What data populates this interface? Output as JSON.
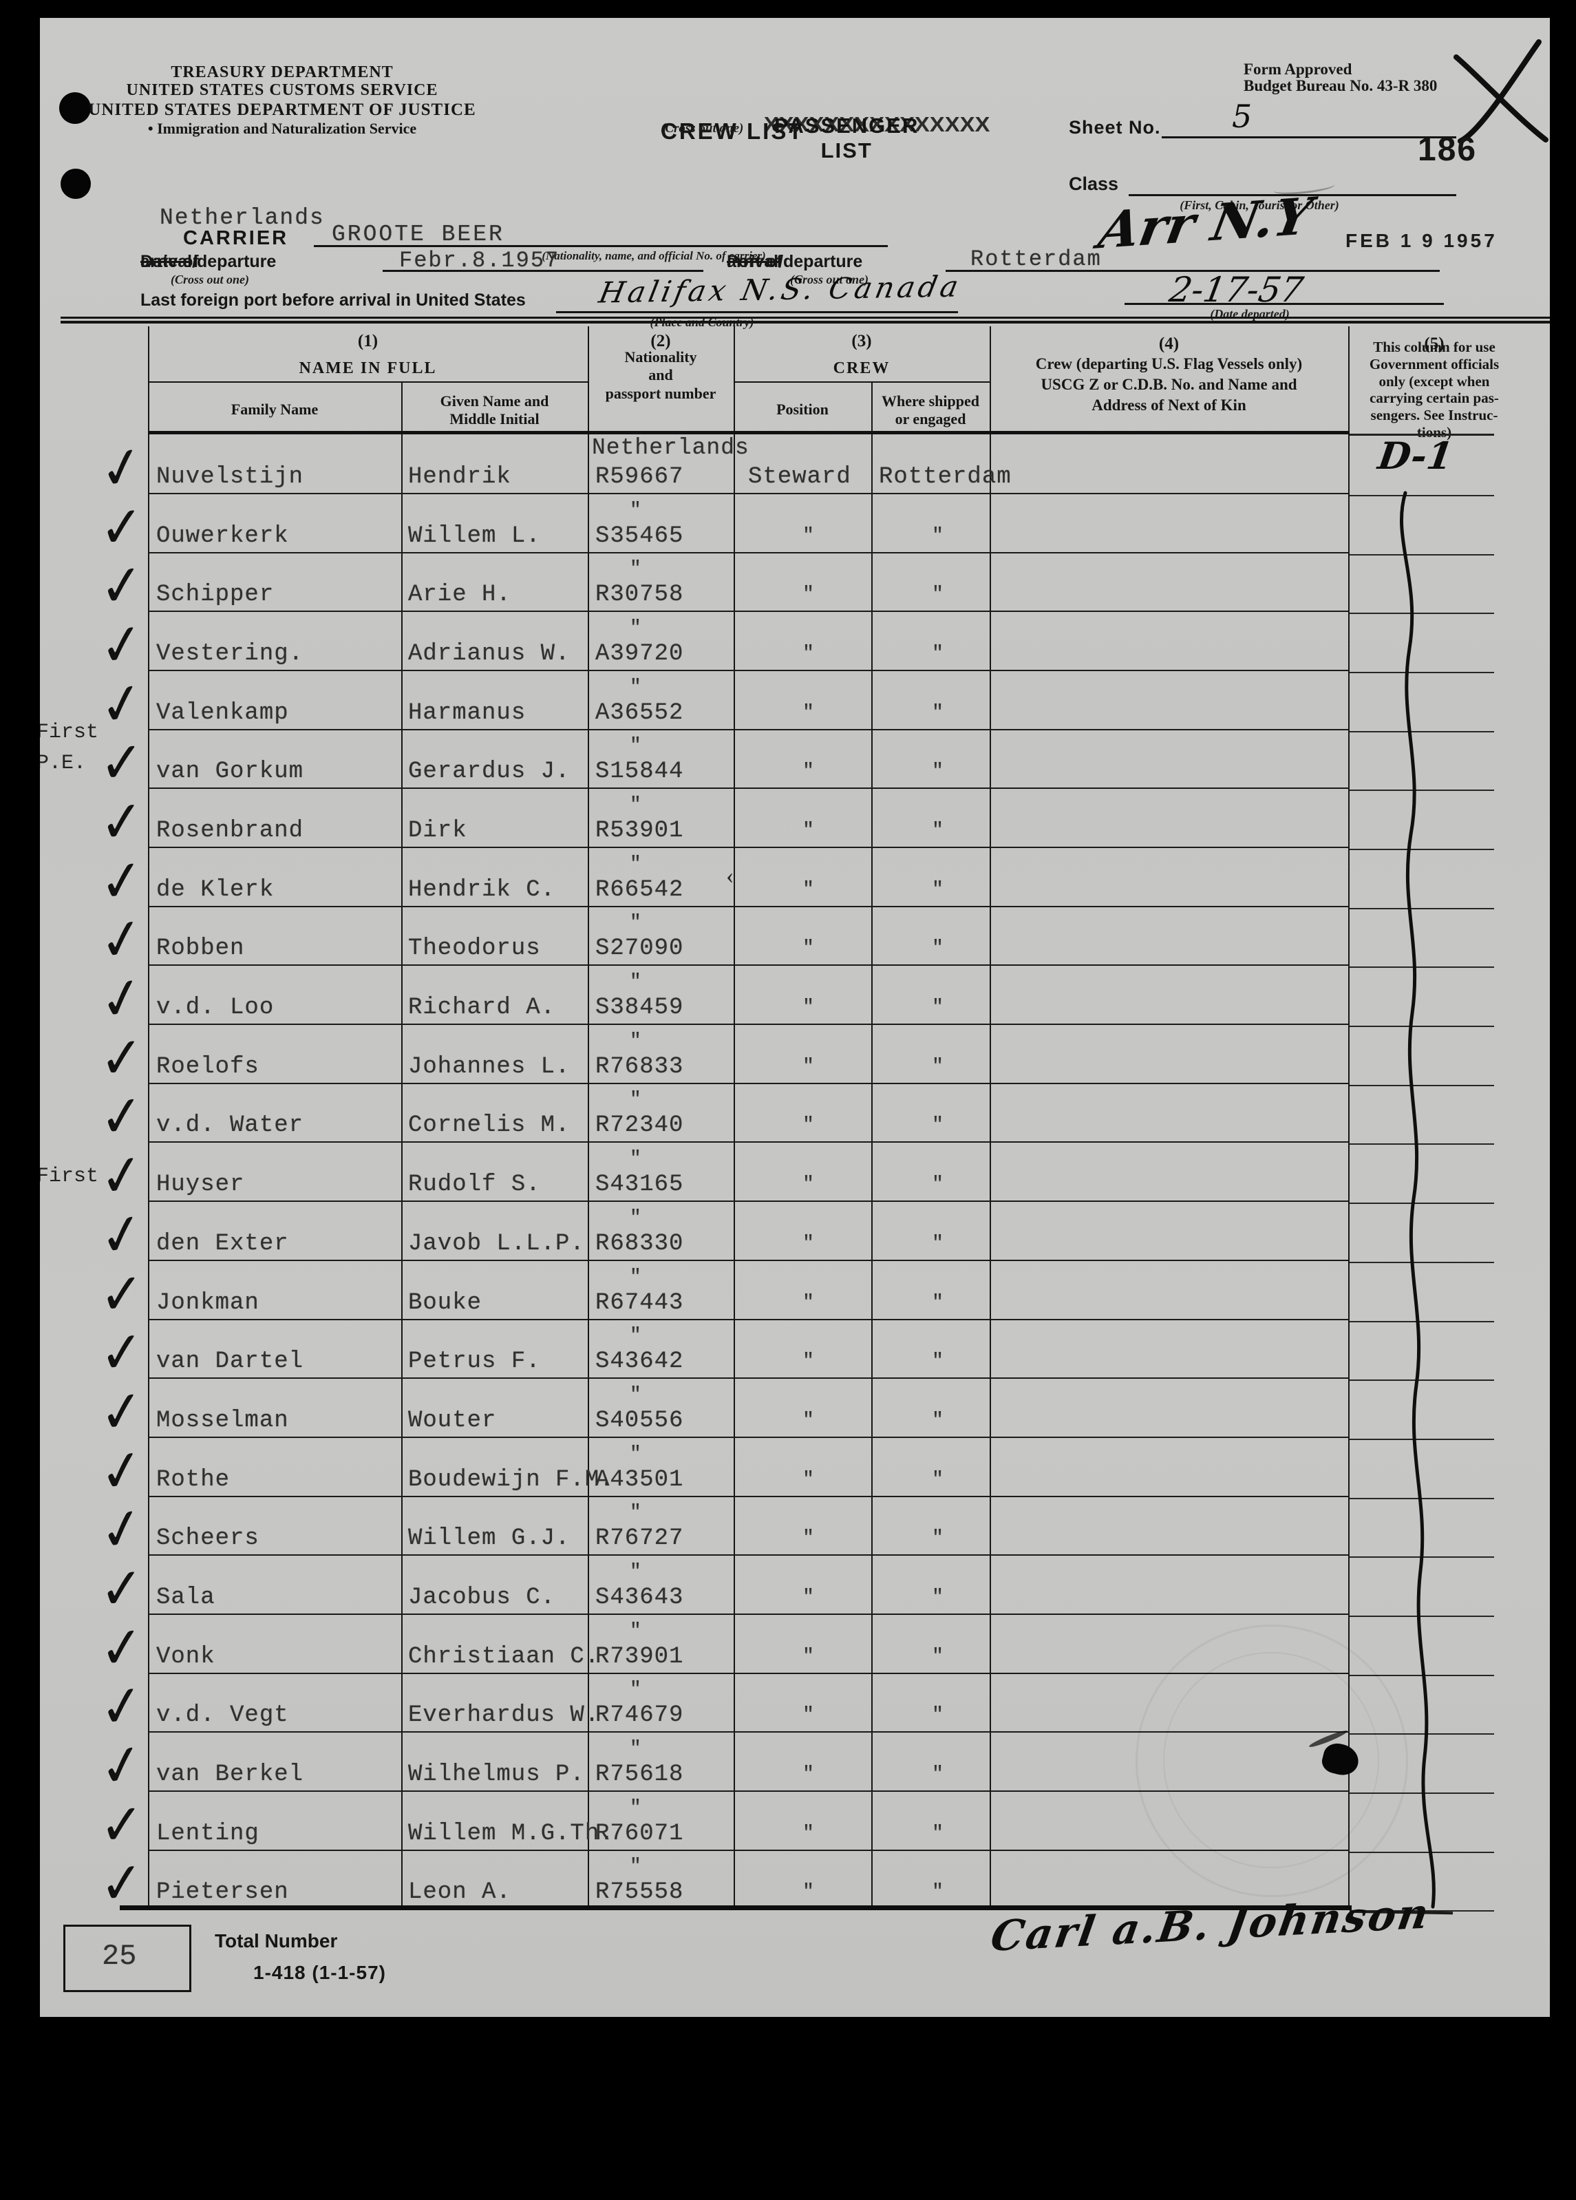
{
  "colors": {
    "paper": "#c6c6c4",
    "ink": "#161616",
    "typewriter": "#30302f",
    "background": "#000000"
  },
  "agency": {
    "treasury_line1": "TREASURY DEPARTMENT",
    "treasury_line2": "UNITED STATES CUSTOMS SERVICE",
    "justice_line1": "UNITED STATES DEPARTMENT OF JUSTICE",
    "justice_line2": "• Immigration and Naturalization Service"
  },
  "title": {
    "crossed_out": "PASSENGER LIST",
    "overstrike": "XXXXXXXXXXXXXXX",
    "main": "CREW LIST",
    "note": "(Cross out one)"
  },
  "form_meta": {
    "approved_line1": "Form Approved",
    "approved_line2": "Budget Bureau No. 43-R 380",
    "sheet_no_label": "Sheet No.",
    "sheet_no_value": "5",
    "page_number": "186",
    "class_label": "Class",
    "class_note": "(First, Cabin, Tourist or Other)"
  },
  "carrier": {
    "nationality_value": "Netherlands",
    "label": "CARRIER",
    "name_value": "GROOTE BEER",
    "note": "(Nationality, name, and official No. of carrier)"
  },
  "voyage": {
    "date_label_pre": "Date of ",
    "date_label_struck": "arrival",
    "date_label_post": "/departure",
    "date_value": "Febr.8.1957",
    "cross_out_note": "(Cross out one)",
    "port_label_pre": "Port of ",
    "port_label_struck": "arrival",
    "port_label_post": "/departure",
    "port_value": "Rotterdam",
    "arrival_annotation": "Arr N.Y",
    "arrival_stamp": "FEB 1 9 1957",
    "last_port_label": "Last foreign port before arrival in United States",
    "last_port_value": "Halifax N.S. Canada",
    "last_port_note": "(Place and Country)",
    "date_departed_value": "2-17-57",
    "date_departed_note": "(Date departed)"
  },
  "table": {
    "check_glyph": "✓",
    "headers": {
      "col1_no": "(1)",
      "col2_no": "(2)",
      "col3_no": "(3)",
      "col4_no": "(4)",
      "col5_no": "(5)",
      "name_group": "NAME IN FULL",
      "family": "Family Name",
      "given": "Given Name and\nMiddle Initial",
      "nationality": "Nationality\nand\npassport number",
      "crew_group": "CREW",
      "position": "Position",
      "where": "Where shipped\nor engaged",
      "col4_text": "Crew (departing U.S. Flag Vessels only)\nUSCG Z or C.D.B. No. and Name and\nAddress of Next of Kin",
      "col5_text": "This column for use\nGovernment officials\nonly (except when\ncarrying certain pas-\nsengers. See Instruc-\ntions)"
    },
    "rows": [
      {
        "family": "Nuvelstijn",
        "given": "Hendrik",
        "nationality": "Netherlands",
        "passport": "R59667",
        "position": "Steward",
        "where": "Rotterdam",
        "col5": "D-1"
      },
      {
        "family": "Ouwerkerk",
        "given": "Willem L.",
        "nationality": "\"",
        "passport": "S35465",
        "position": "\"",
        "where": "\""
      },
      {
        "family": "Schipper",
        "given": "Arie H.",
        "nationality": "\"",
        "passport": "R30758",
        "position": "\"",
        "where": "\""
      },
      {
        "family": "Vestering.",
        "given": "Adrianus W.",
        "nationality": "\"",
        "passport": "A39720",
        "position": "\"",
        "where": "\""
      },
      {
        "family": "Valenkamp",
        "given": "Harmanus",
        "nationality": "\"",
        "passport": "A36552",
        "position": "\"",
        "where": "\""
      },
      {
        "family": "van Gorkum",
        "given": "Gerardus J.",
        "nationality": "\"",
        "passport": "S15844",
        "position": "\"",
        "where": "\"",
        "margin": "First\nP.E."
      },
      {
        "family": "Rosenbrand",
        "given": "Dirk",
        "nationality": "\"",
        "passport": "R53901",
        "position": "\"",
        "where": "\""
      },
      {
        "family": "de Klerk",
        "given": "Hendrik C.",
        "nationality": "\"",
        "passport": "R66542",
        "position": "\"",
        "where": "\"",
        "stray_mark": "‹"
      },
      {
        "family": "Robben",
        "given": "Theodorus",
        "nationality": "\"",
        "passport": "S27090",
        "position": "\"",
        "where": "\""
      },
      {
        "family": "v.d. Loo",
        "given": "Richard A.",
        "nationality": "\"",
        "passport": "S38459",
        "position": "\"",
        "where": "\""
      },
      {
        "family": "Roelofs",
        "given": "Johannes L.",
        "nationality": "\"",
        "passport": "R76833",
        "position": "\"",
        "where": "\""
      },
      {
        "family": "v.d. Water",
        "given": "Cornelis M.",
        "nationality": "\"",
        "passport": "R72340",
        "position": "\"",
        "where": "\""
      },
      {
        "family": "Huyser",
        "given": "Rudolf S.",
        "nationality": "\"",
        "passport": "S43165",
        "position": "\"",
        "where": "\"",
        "margin": "First"
      },
      {
        "family": "den Exter",
        "given": "Javob L.L.P.",
        "nationality": "\"",
        "passport": "R68330",
        "position": "\"",
        "where": "\""
      },
      {
        "family": "Jonkman",
        "given": "Bouke",
        "nationality": "\"",
        "passport": "R67443",
        "position": "\"",
        "where": "\""
      },
      {
        "family": "van Dartel",
        "given": "Petrus F.",
        "nationality": "\"",
        "passport": "S43642",
        "position": "\"",
        "where": "\""
      },
      {
        "family": "Mosselman",
        "given": "Wouter",
        "nationality": "\"",
        "passport": "S40556",
        "position": "\"",
        "where": "\""
      },
      {
        "family": "Rothe",
        "given": "Boudewijn F.M.",
        "nationality": "\"",
        "passport": "A43501",
        "position": "\"",
        "where": "\""
      },
      {
        "family": "Scheers",
        "given": "Willem G.J.",
        "nationality": "\"",
        "passport": "R76727",
        "position": "\"",
        "where": "\""
      },
      {
        "family": "Sala",
        "given": "Jacobus C.",
        "nationality": "\"",
        "passport": "S43643",
        "position": "\"",
        "where": "\""
      },
      {
        "family": "Vonk",
        "given": "Christiaan C.",
        "nationality": "\"",
        "passport": "R73901",
        "position": "\"",
        "where": "\""
      },
      {
        "family": "v.d. Vegt",
        "given": "Everhardus W.",
        "nationality": "\"",
        "passport": "R74679",
        "position": "\"",
        "where": "\""
      },
      {
        "family": "van Berkel",
        "given": "Wilhelmus P.",
        "nationality": "\"",
        "passport": "R75618",
        "position": "\"",
        "where": "\""
      },
      {
        "family": "Lenting",
        "given": "Willem M.G.Th.",
        "nationality": "\"",
        "passport": "R76071",
        "position": "\"",
        "where": "\""
      },
      {
        "family": "Pietersen",
        "given": "Leon A.",
        "nationality": "\"",
        "passport": "R75558",
        "position": "\"",
        "where": "\""
      }
    ]
  },
  "footer": {
    "total_value": "25",
    "total_label": "Total Number",
    "form_number": "1-418 (1-1-57)",
    "signature": "Carl a.B. Johnson"
  }
}
